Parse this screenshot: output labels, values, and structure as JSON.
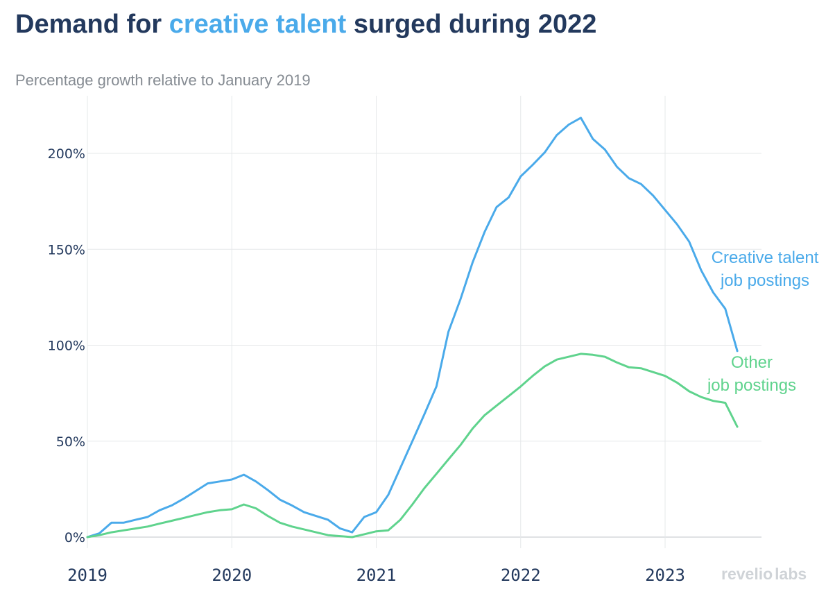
{
  "title": {
    "part1": "Demand for ",
    "highlight": "creative talent",
    "part2": " surged during 2022",
    "highlight_color": "#4aaaea",
    "color": "#23395d"
  },
  "subtitle": "Percentage growth relative to January 2019",
  "logo": {
    "part1": "revelio",
    "part2": "labs"
  },
  "chart_data": {
    "type": "line",
    "title": "Demand for creative talent surged during 2022",
    "subtitle": "Percentage growth relative to January 2019",
    "xlabel": "",
    "ylabel": "",
    "xlim": [
      2019.0,
      2023.7
    ],
    "ylim": [
      -5,
      230
    ],
    "x_ticks": [
      2019,
      2020,
      2021,
      2022,
      2023
    ],
    "x_tick_labels": [
      "2019",
      "2020",
      "2021",
      "2022",
      "2023"
    ],
    "y_ticks": [
      0,
      50,
      100,
      150,
      200
    ],
    "y_tick_labels": [
      "0%",
      "50%",
      "100%",
      "150%",
      "200%"
    ],
    "grid": true,
    "legend": "direct labels at line ends (right)",
    "x": [
      2019.0,
      2019.0833,
      2019.1667,
      2019.25,
      2019.3333,
      2019.4167,
      2019.5,
      2019.5833,
      2019.6667,
      2019.75,
      2019.8333,
      2019.9167,
      2020.0,
      2020.0833,
      2020.1667,
      2020.25,
      2020.3333,
      2020.4167,
      2020.5,
      2020.5833,
      2020.6667,
      2020.75,
      2020.8333,
      2020.9167,
      2021.0,
      2021.0833,
      2021.1667,
      2021.25,
      2021.3333,
      2021.4167,
      2021.5,
      2021.5833,
      2021.6667,
      2021.75,
      2021.8333,
      2021.9167,
      2022.0,
      2022.0833,
      2022.1667,
      2022.25,
      2022.3333,
      2022.4167,
      2022.5,
      2022.5833,
      2022.6667,
      2022.75,
      2022.8333,
      2022.9167,
      2023.0,
      2023.0833,
      2023.1667,
      2023.25,
      2023.3333,
      2023.4167,
      2023.5
    ],
    "series": [
      {
        "name": "Creative talent job postings",
        "label_lines": [
          "Creative talent",
          "job postings"
        ],
        "color": "#4aaaea",
        "values": [
          0,
          2,
          7.5,
          7.5,
          9,
          10.5,
          14,
          16.5,
          20,
          24,
          28,
          29,
          30,
          32.5,
          29,
          24.5,
          19.5,
          16.5,
          13,
          11,
          9,
          4.5,
          2.5,
          10.5,
          13,
          22,
          36,
          50,
          64,
          78.5,
          107,
          124,
          143,
          159,
          172,
          177,
          188,
          194,
          200.5,
          209.5,
          215,
          218.5,
          207.5,
          202,
          193,
          187,
          184,
          178,
          170.5,
          163,
          154,
          139,
          127.5,
          119,
          97
        ]
      },
      {
        "name": "Other job postings",
        "label_lines": [
          "Other",
          "job postings"
        ],
        "color": "#5fd38d",
        "values": [
          0,
          1,
          2.5,
          3.5,
          4.5,
          5.5,
          7,
          8.5,
          10,
          11.5,
          13,
          14,
          14.5,
          17,
          15,
          11,
          7.5,
          5.5,
          4,
          2.5,
          1,
          0.5,
          0,
          1.5,
          3,
          3.5,
          9,
          17,
          25.5,
          33,
          40.5,
          48,
          56.5,
          63.5,
          68.5,
          73.5,
          78.5,
          84,
          89,
          92.5,
          94,
          95.5,
          95,
          94,
          91,
          88.5,
          88,
          86,
          84,
          80.5,
          76,
          73,
          71,
          70,
          57.5
        ]
      }
    ]
  }
}
